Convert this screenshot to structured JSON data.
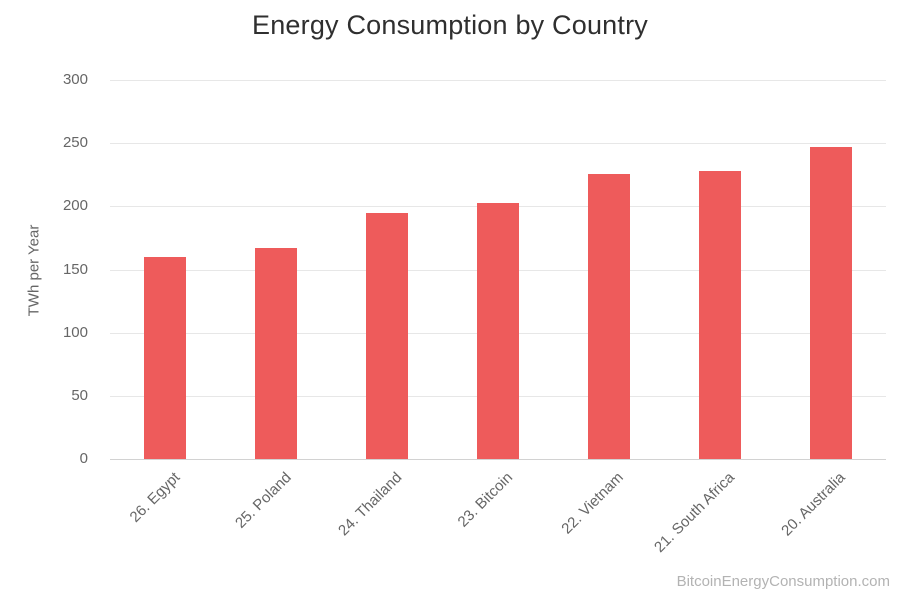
{
  "title": "Energy Consumption by Country",
  "watermark_label": "BitcoinEnergyConsumption.com",
  "chart_data": {
    "type": "bar",
    "title": "Energy Consumption by Country",
    "categories": [
      "26. Egypt",
      "25. Poland",
      "24. Thailand",
      "23. Bitcoin",
      "22. Vietnam",
      "21. South Africa",
      "20. Australia"
    ],
    "values": [
      160,
      167,
      195,
      203,
      226,
      228,
      247
    ],
    "xlabel": "",
    "ylabel": "TWh per Year",
    "ylim": [
      0,
      300
    ],
    "yticks": [
      0,
      50,
      100,
      150,
      200,
      250,
      300
    ],
    "grid": true,
    "legend_position": "none",
    "bar_color": "#ee5b5b",
    "source_watermark": "BitcoinEnergyConsumption.com"
  }
}
